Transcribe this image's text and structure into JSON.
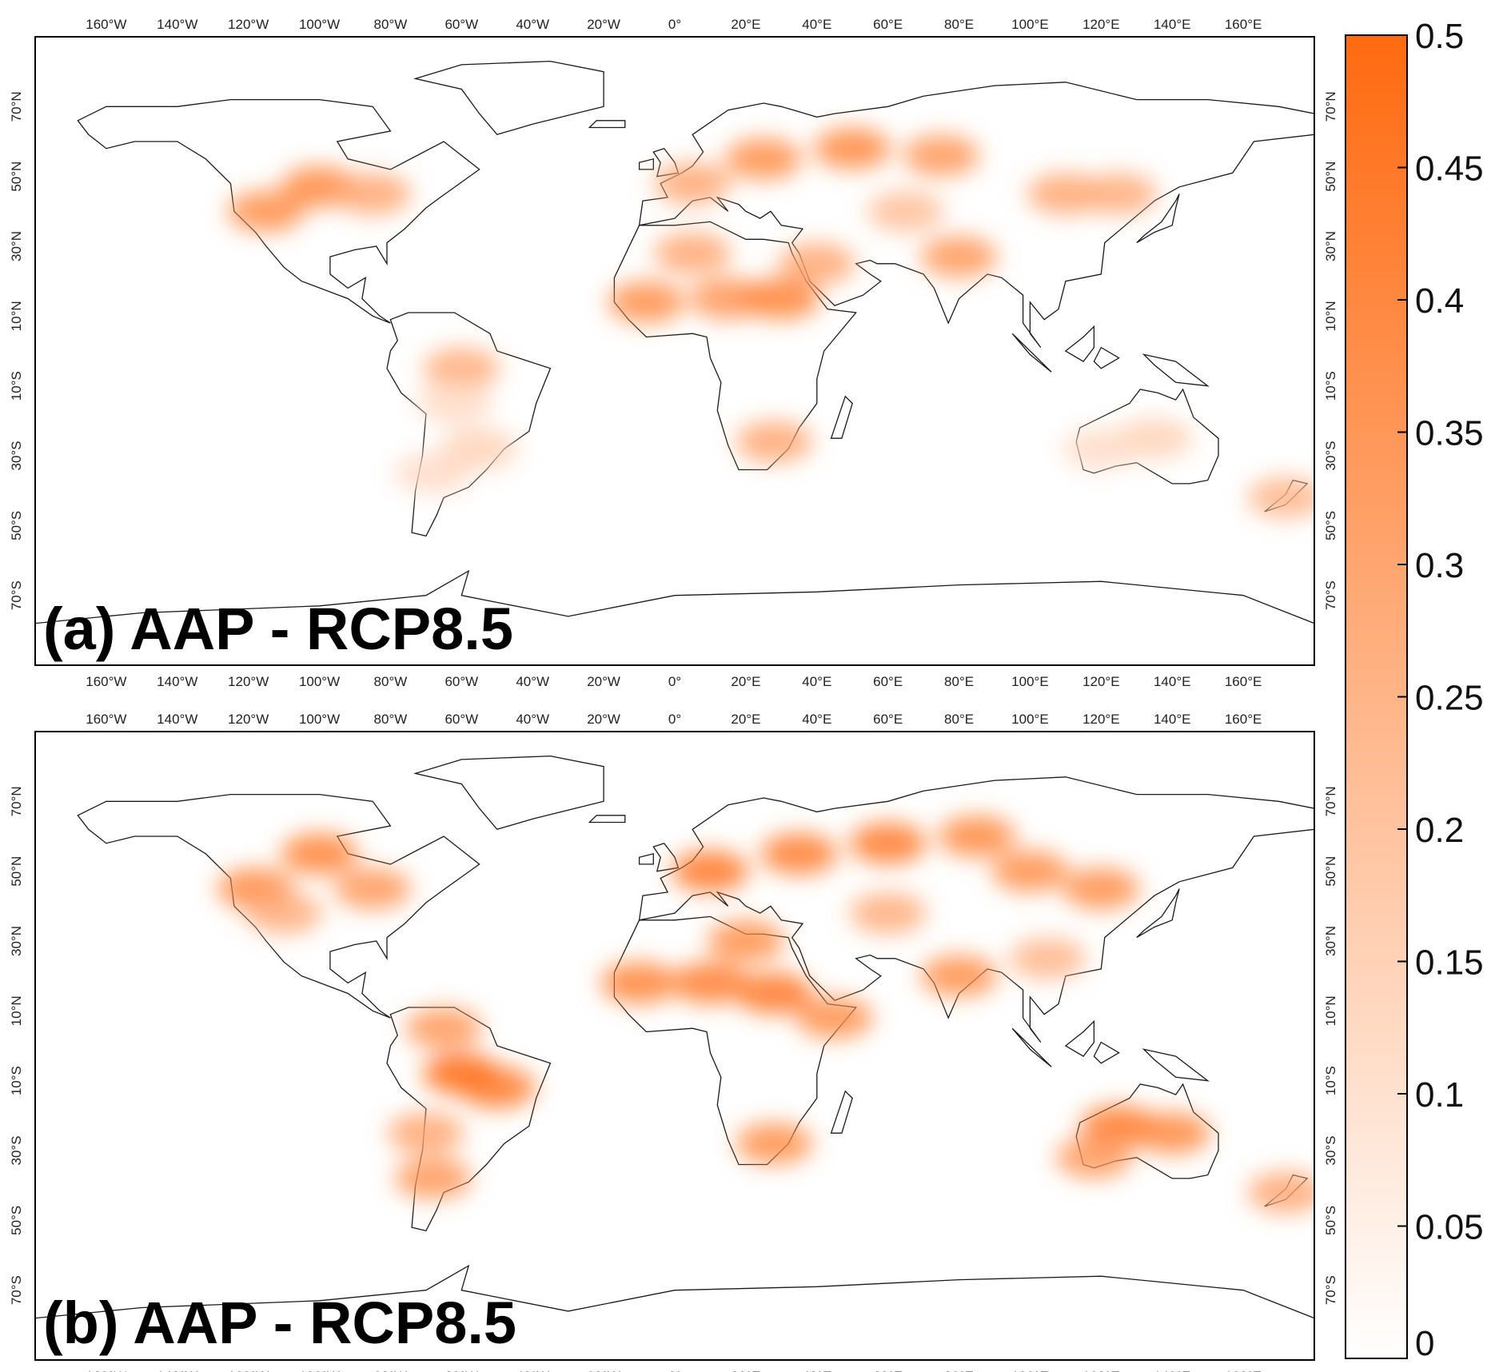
{
  "colors": {
    "scale_low": "#ffffff",
    "scale_high": "#ff6a10",
    "frame": "#000000"
  },
  "lon_ticks": [
    "160°W",
    "140°W",
    "120°W",
    "100°W",
    "80°W",
    "60°W",
    "40°W",
    "20°W",
    "0°",
    "20°E",
    "40°E",
    "60°E",
    "80°E",
    "100°E",
    "120°E",
    "140°E",
    "160°E"
  ],
  "lat_ticks": [
    "70°N",
    "50°N",
    "30°N",
    "10°N",
    "10°S",
    "30°S",
    "50°S",
    "70°S"
  ],
  "colorbar": {
    "min": 0,
    "max": 0.5,
    "tick_labels": [
      "0.5",
      "0.45",
      "0.4",
      "0.35",
      "0.3",
      "0.25",
      "0.2",
      "0.15",
      "0.1",
      "0.05",
      "0"
    ]
  },
  "panels": [
    {
      "label": "(a) AAP - RCP8.5",
      "hotspots": [
        {
          "lon": -100,
          "lat": 47,
          "v": 0.4
        },
        {
          "lon": -115,
          "lat": 40,
          "v": 0.38
        },
        {
          "lon": -85,
          "lat": 45,
          "v": 0.3
        },
        {
          "lon": -60,
          "lat": -5,
          "v": 0.28
        },
        {
          "lon": -62,
          "lat": -15,
          "v": 0.12
        },
        {
          "lon": -55,
          "lat": -28,
          "v": 0.15
        },
        {
          "lon": -68,
          "lat": -35,
          "v": 0.12
        },
        {
          "lon": -8,
          "lat": 14,
          "v": 0.38
        },
        {
          "lon": 15,
          "lat": 15,
          "v": 0.36
        },
        {
          "lon": 30,
          "lat": 15,
          "v": 0.42
        },
        {
          "lon": 5,
          "lat": 28,
          "v": 0.3
        },
        {
          "lon": 40,
          "lat": 25,
          "v": 0.3
        },
        {
          "lon": 5,
          "lat": 48,
          "v": 0.3
        },
        {
          "lon": 25,
          "lat": 55,
          "v": 0.38
        },
        {
          "lon": 50,
          "lat": 58,
          "v": 0.4
        },
        {
          "lon": 75,
          "lat": 56,
          "v": 0.35
        },
        {
          "lon": 65,
          "lat": 40,
          "v": 0.22
        },
        {
          "lon": 80,
          "lat": 27,
          "v": 0.35
        },
        {
          "lon": 110,
          "lat": 45,
          "v": 0.3
        },
        {
          "lon": 125,
          "lat": 45,
          "v": 0.28
        },
        {
          "lon": 28,
          "lat": -26,
          "v": 0.3
        },
        {
          "lon": 135,
          "lat": -25,
          "v": 0.15
        },
        {
          "lon": 120,
          "lat": -28,
          "v": 0.12
        },
        {
          "lon": 172,
          "lat": -42,
          "v": 0.25
        }
      ]
    },
    {
      "label": "(b) AAP - RCP8.5",
      "hotspots": [
        {
          "lon": -100,
          "lat": 55,
          "v": 0.42
        },
        {
          "lon": -118,
          "lat": 45,
          "v": 0.4
        },
        {
          "lon": -110,
          "lat": 38,
          "v": 0.28
        },
        {
          "lon": -85,
          "lat": 45,
          "v": 0.35
        },
        {
          "lon": -60,
          "lat": -8,
          "v": 0.5
        },
        {
          "lon": -50,
          "lat": -12,
          "v": 0.45
        },
        {
          "lon": -65,
          "lat": 5,
          "v": 0.35
        },
        {
          "lon": -70,
          "lat": -25,
          "v": 0.3
        },
        {
          "lon": -68,
          "lat": -38,
          "v": 0.35
        },
        {
          "lon": -10,
          "lat": 18,
          "v": 0.42
        },
        {
          "lon": 10,
          "lat": 18,
          "v": 0.44
        },
        {
          "lon": 28,
          "lat": 15,
          "v": 0.46
        },
        {
          "lon": 20,
          "lat": 30,
          "v": 0.38
        },
        {
          "lon": 45,
          "lat": 8,
          "v": 0.38
        },
        {
          "lon": 10,
          "lat": 50,
          "v": 0.46
        },
        {
          "lon": 35,
          "lat": 55,
          "v": 0.44
        },
        {
          "lon": 60,
          "lat": 58,
          "v": 0.45
        },
        {
          "lon": 85,
          "lat": 60,
          "v": 0.4
        },
        {
          "lon": 100,
          "lat": 50,
          "v": 0.38
        },
        {
          "lon": 60,
          "lat": 38,
          "v": 0.28
        },
        {
          "lon": 80,
          "lat": 20,
          "v": 0.38
        },
        {
          "lon": 120,
          "lat": 45,
          "v": 0.38
        },
        {
          "lon": 105,
          "lat": 25,
          "v": 0.25
        },
        {
          "lon": 28,
          "lat": -28,
          "v": 0.38
        },
        {
          "lon": 125,
          "lat": -23,
          "v": 0.45
        },
        {
          "lon": 140,
          "lat": -25,
          "v": 0.4
        },
        {
          "lon": 118,
          "lat": -32,
          "v": 0.35
        },
        {
          "lon": 172,
          "lat": -42,
          "v": 0.3
        }
      ]
    }
  ]
}
